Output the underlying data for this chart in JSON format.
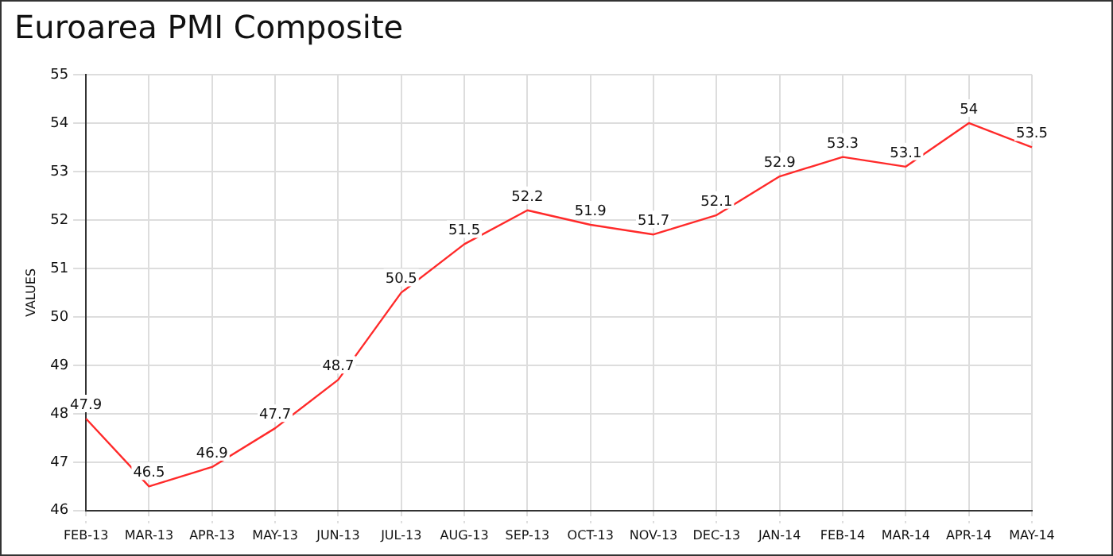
{
  "chart_data": {
    "type": "line",
    "title": "Euroarea PMI Composite",
    "ylabel": "VALUES",
    "categories": [
      "FEB-13",
      "MAR-13",
      "APR-13",
      "MAY-13",
      "JUN-13",
      "JUL-13",
      "AUG-13",
      "SEP-13",
      "OCT-13",
      "NOV-13",
      "DEC-13",
      "JAN-14",
      "FEB-14",
      "MAR-14",
      "APR-14",
      "MAY-14"
    ],
    "series": [
      {
        "color": "#ff2a2a",
        "values": [
          47.9,
          46.5,
          46.9,
          47.7,
          48.7,
          50.5,
          51.5,
          52.2,
          51.9,
          51.7,
          52.1,
          52.9,
          53.3,
          53.1,
          54,
          53.5
        ]
      }
    ],
    "ylim": [
      46,
      55
    ],
    "yticks": [
      46,
      47,
      48,
      49,
      50,
      51,
      52,
      53,
      54,
      55
    ],
    "grid": true,
    "legend": false,
    "marker": "none",
    "line_style": "solid",
    "data_labels": true
  }
}
